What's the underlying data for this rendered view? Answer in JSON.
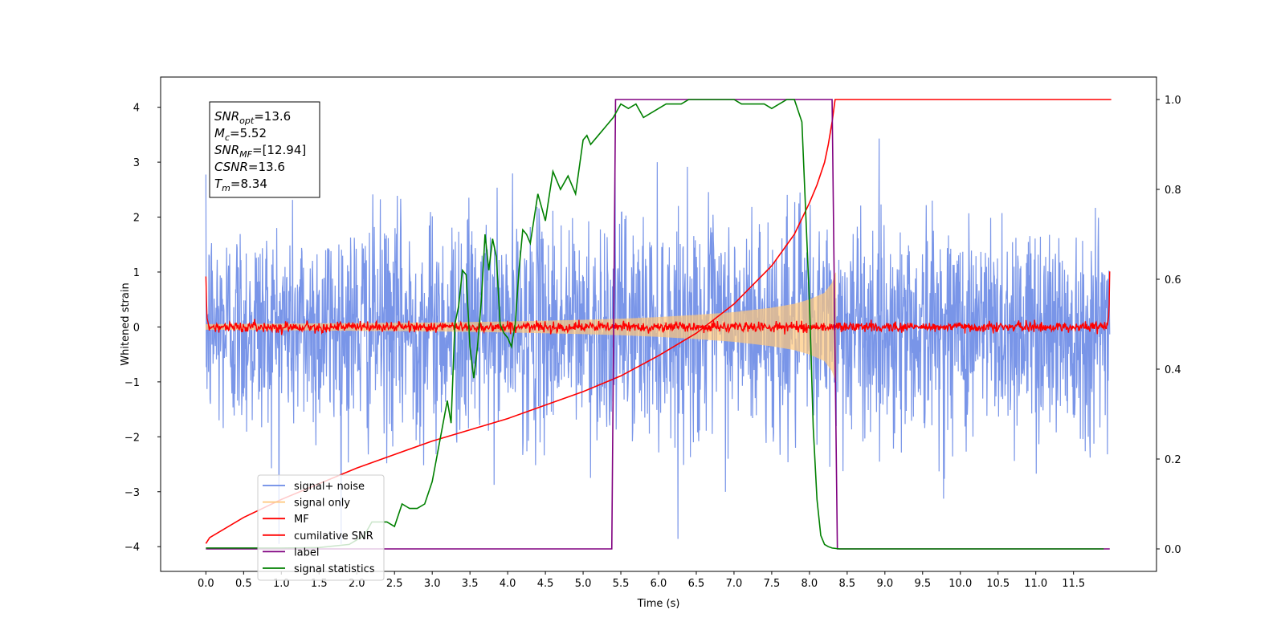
{
  "chart_data": {
    "type": "line",
    "xlabel": "Time (s)",
    "ylabel_left": "Whitened strain",
    "ylabel_right": "",
    "xlim": [
      -0.6,
      12.6
    ],
    "ylim_left": [
      -4.45,
      4.55
    ],
    "ylim_right": [
      -0.05,
      1.05
    ],
    "x_ticks": [
      0.0,
      0.5,
      1.0,
      1.5,
      2.0,
      2.5,
      3.0,
      3.5,
      4.0,
      4.5,
      5.0,
      5.5,
      6.0,
      6.5,
      7.0,
      7.5,
      8.0,
      8.5,
      9.0,
      9.5,
      10.0,
      10.5,
      11.0,
      11.5
    ],
    "x_tick_labels": [
      "0.0",
      "0.5",
      "1.0",
      "1.5",
      "2.0",
      "2.5",
      "3.0",
      "3.5",
      "4.0",
      "4.5",
      "5.0",
      "5.5",
      "6.0",
      "6.5",
      "7.0",
      "7.5",
      "8.0",
      "8.5",
      "9.0",
      "9.5",
      "10.0",
      "10.5",
      "11.0",
      "11.5"
    ],
    "y_ticks_left": [
      -4,
      -3,
      -2,
      -1,
      0,
      1,
      2,
      3,
      4
    ],
    "y_tick_labels_left": [
      "−4",
      "−3",
      "−2",
      "−1",
      "0",
      "1",
      "2",
      "3",
      "4"
    ],
    "y_ticks_right": [
      0.0,
      0.2,
      0.4,
      0.6,
      0.8,
      1.0
    ],
    "y_tick_labels_right": [
      "0.0",
      "0.2",
      "0.4",
      "0.6",
      "0.8",
      "1.0"
    ],
    "grid": false,
    "legend_position": "lower-left",
    "legend": [
      {
        "label": "signal+ noise",
        "color": "#6a8ae6"
      },
      {
        "label": "signal only",
        "color": "#ffc77a"
      },
      {
        "label": "MF",
        "color": "#ff0000"
      },
      {
        "label": "cumilative SNR",
        "color": "#ff0000"
      },
      {
        "label": "label",
        "color": "#800080"
      },
      {
        "label": "signal statistics",
        "color": "#008000"
      }
    ],
    "info_box": {
      "position": "top-left",
      "lines": [
        {
          "base": "SNR",
          "sub": "opt",
          "rest": "=13.6"
        },
        {
          "base": "M",
          "sub": "c",
          "rest": "=5.52"
        },
        {
          "base": "SNR",
          "sub": "MF",
          "rest": "=[12.94]"
        },
        {
          "base": "CSNR",
          "sub": "",
          "rest": "=13.6"
        },
        {
          "base": "T",
          "sub": "m",
          "rest": "=8.34"
        }
      ]
    },
    "series": [
      {
        "name": "signal+ noise",
        "axis": "left",
        "color": "#6a8ae6",
        "kind": "noise",
        "x_range": [
          0.0,
          11.98
        ],
        "amplitude_std": 1.0,
        "peak_max": 4.2,
        "peak_min": -3.95
      },
      {
        "name": "signal only",
        "axis": "left",
        "color": "#ffc77a",
        "kind": "chirp-envelope",
        "x_range": [
          0.0,
          8.35
        ],
        "envelope": {
          "x": [
            0.0,
            1.0,
            2.0,
            3.0,
            4.0,
            5.0,
            5.5,
            6.0,
            6.5,
            7.0,
            7.5,
            7.8,
            8.0,
            8.2,
            8.3,
            8.35
          ],
          "y": [
            0.05,
            0.06,
            0.07,
            0.08,
            0.1,
            0.13,
            0.15,
            0.18,
            0.22,
            0.27,
            0.35,
            0.42,
            0.5,
            0.62,
            0.8,
            1.0
          ]
        }
      },
      {
        "name": "MF",
        "axis": "left",
        "color": "#ff0000",
        "kind": "mf",
        "x_range": [
          0.0,
          11.98
        ],
        "base_amplitude": 0.1,
        "edge_peak": 1.0
      },
      {
        "name": "cumilative SNR",
        "axis": "right",
        "color": "#ff0000",
        "x": [
          0.0,
          0.05,
          0.5,
          1.0,
          1.5,
          2.0,
          2.5,
          3.0,
          3.5,
          4.0,
          4.5,
          5.0,
          5.5,
          6.0,
          6.5,
          7.0,
          7.5,
          7.8,
          8.0,
          8.1,
          8.2,
          8.25,
          8.3,
          8.34,
          8.4,
          9.0,
          10.0,
          11.0,
          12.0
        ],
        "y": [
          0.012,
          0.025,
          0.07,
          0.11,
          0.145,
          0.18,
          0.21,
          0.24,
          0.265,
          0.29,
          0.32,
          0.35,
          0.385,
          0.43,
          0.48,
          0.545,
          0.63,
          0.7,
          0.77,
          0.81,
          0.86,
          0.9,
          0.95,
          1.0,
          1.0,
          1.0,
          1.0,
          1.0,
          1.0
        ]
      },
      {
        "name": "label",
        "axis": "right",
        "color": "#800080",
        "x": [
          0.0,
          5.38,
          5.43,
          8.3,
          8.37,
          11.98
        ],
        "y": [
          0.0,
          0.0,
          1.0,
          1.0,
          0.0,
          0.0
        ]
      },
      {
        "name": "signal statistics",
        "axis": "right",
        "color": "#008000",
        "x": [
          0.0,
          0.5,
          1.0,
          1.5,
          1.9,
          2.1,
          2.2,
          2.3,
          2.4,
          2.5,
          2.6,
          2.7,
          2.8,
          2.9,
          3.0,
          3.1,
          3.2,
          3.25,
          3.3,
          3.35,
          3.4,
          3.45,
          3.5,
          3.55,
          3.6,
          3.65,
          3.7,
          3.75,
          3.8,
          3.85,
          3.9,
          3.95,
          4.0,
          4.05,
          4.1,
          4.15,
          4.2,
          4.25,
          4.3,
          4.4,
          4.5,
          4.6,
          4.7,
          4.8,
          4.9,
          5.0,
          5.05,
          5.1,
          5.2,
          5.3,
          5.4,
          5.5,
          5.6,
          5.7,
          5.8,
          5.9,
          6.0,
          6.1,
          6.2,
          6.3,
          6.4,
          6.5,
          6.6,
          6.8,
          7.0,
          7.1,
          7.3,
          7.4,
          7.5,
          7.6,
          7.7,
          7.8,
          7.9,
          8.0,
          8.05,
          8.1,
          8.15,
          8.2,
          8.25,
          8.3,
          8.4,
          9.0,
          10.0,
          11.0,
          11.9
        ],
        "y": [
          0.002,
          0.002,
          0.002,
          0.003,
          0.01,
          0.03,
          0.06,
          0.06,
          0.06,
          0.05,
          0.1,
          0.09,
          0.09,
          0.1,
          0.15,
          0.24,
          0.33,
          0.28,
          0.5,
          0.54,
          0.62,
          0.61,
          0.45,
          0.38,
          0.45,
          0.55,
          0.7,
          0.62,
          0.69,
          0.65,
          0.5,
          0.48,
          0.47,
          0.45,
          0.5,
          0.62,
          0.71,
          0.7,
          0.68,
          0.79,
          0.73,
          0.84,
          0.8,
          0.83,
          0.79,
          0.91,
          0.92,
          0.9,
          0.92,
          0.94,
          0.96,
          0.99,
          0.98,
          0.99,
          0.96,
          0.97,
          0.98,
          0.99,
          0.99,
          0.99,
          1.0,
          1.0,
          1.0,
          1.0,
          1.0,
          0.99,
          0.99,
          0.99,
          0.98,
          0.99,
          1.0,
          1.0,
          0.95,
          0.55,
          0.27,
          0.11,
          0.03,
          0.01,
          0.005,
          0.002,
          0.0,
          0.0,
          0.0,
          0.0,
          0.0
        ]
      }
    ]
  }
}
